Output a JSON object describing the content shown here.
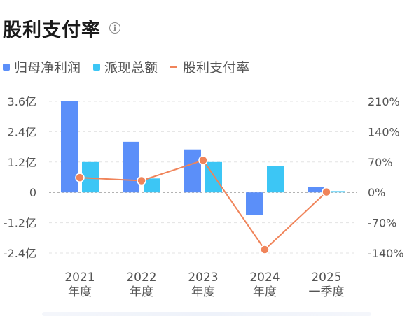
{
  "title": "股利支付率",
  "icons": {
    "info": "info-icon"
  },
  "colors": {
    "profit": "#5b8ff9",
    "dividend": "#3cc6f5",
    "ratio": "#f0845a"
  },
  "chart_data": {
    "type": "bar",
    "categories": [
      [
        "2021",
        "年度"
      ],
      [
        "2022",
        "年度"
      ],
      [
        "2023",
        "年度"
      ],
      [
        "2024",
        "年度"
      ],
      [
        "2025",
        "一季度"
      ]
    ],
    "series": [
      {
        "name": "归母净利润",
        "type": "bar",
        "axis": "left",
        "values": [
          3.6,
          2.0,
          1.7,
          -0.9,
          0.2
        ]
      },
      {
        "name": "派现总额",
        "type": "bar",
        "axis": "left",
        "values": [
          1.2,
          0.55,
          1.2,
          1.05,
          0.05
        ]
      },
      {
        "name": "股利支付率",
        "type": "line",
        "axis": "right",
        "values": [
          34,
          27,
          74,
          -132,
          1
        ]
      }
    ],
    "left_axis": {
      "ticks": [
        3.6,
        2.4,
        1.2,
        0,
        -1.2,
        -2.4
      ],
      "labels": [
        "3.6亿",
        "2.4亿",
        "1.2亿",
        "0",
        "-1.2亿",
        "-2.4亿"
      ],
      "ylim": [
        -2.4,
        3.6
      ]
    },
    "right_axis": {
      "ticks": [
        210,
        140,
        70,
        0,
        -70,
        -140
      ],
      "labels": [
        "210%",
        "140%",
        "70%",
        "0%",
        "-70%",
        "-140%"
      ],
      "ylim": [
        -140,
        210
      ]
    },
    "grid": true,
    "legend": "top-left"
  }
}
